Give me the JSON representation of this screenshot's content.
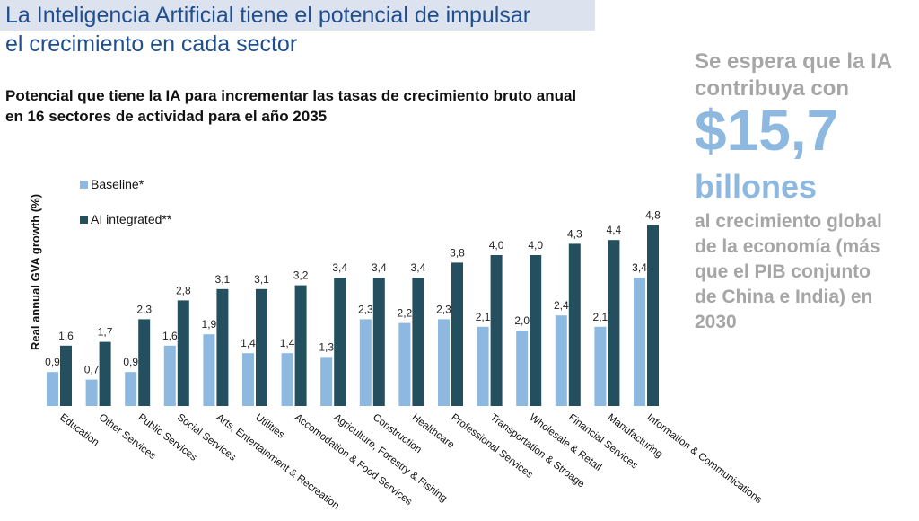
{
  "header": {
    "title_line1": "La Inteligencia Artificial tiene el potencial de impulsar",
    "title_line2": "el crecimiento en cada sector"
  },
  "colors": {
    "baseline": "#8db8e0",
    "ai_integrated": "#244f5e",
    "title": "#1f4f8f",
    "side_text": "#a6a6a6"
  },
  "side_panel": {
    "lead_line1": "Se espera que la IA",
    "lead_line2": "contribuya con",
    "figure": "$15,7",
    "unit": "billones",
    "body_lines": [
      "al crecimiento global",
      "de la economía (más",
      "que el PIB conjunto",
      "de China e India) en",
      "2030"
    ]
  },
  "chart_data": {
    "type": "bar",
    "title": "Potencial que tiene la IA para incrementar las tasas de crecimiento bruto anual en 16 sectores de actividad para el año 2035",
    "title_lines": [
      "Potencial que tiene la IA para incrementar las tasas de crecimiento bruto anual",
      "en 16 sectores de actividad para el año 2035"
    ],
    "ylabel": "Real annual GVA growth (%)",
    "xlabel": "",
    "ylim": [
      0,
      4.8
    ],
    "grid": false,
    "legend": "top-left",
    "categories": [
      "Education",
      "Other Services",
      "Public Services",
      "Social Services",
      "Arts, Entertainment & Recreation",
      "Utilities",
      "Accomodation & Food Services",
      "Agriculture, Forestry & Fishing",
      "Construction",
      "Healthcare",
      "Professional Services",
      "Transportation & Stroage",
      "Wholesale & Retail",
      "Financial Services",
      "Manufacturing",
      "Information & Communications"
    ],
    "series": [
      {
        "name": "Baseline*",
        "values": [
          0.9,
          0.7,
          0.9,
          1.6,
          1.9,
          1.4,
          1.4,
          1.3,
          2.3,
          2.2,
          2.3,
          2.1,
          2.0,
          2.4,
          2.1,
          3.4
        ],
        "labels": [
          "0,9",
          "0,7",
          "0,9",
          "1,6",
          "1,9",
          "1,4",
          "1,4",
          "1,3",
          "2,3",
          "2,2",
          "2,3",
          "2,1",
          "2,0",
          "2,4",
          "2,1",
          "3,4"
        ]
      },
      {
        "name": "AI integrated**",
        "values": [
          1.6,
          1.7,
          2.3,
          2.8,
          3.1,
          3.1,
          3.2,
          3.4,
          3.4,
          3.4,
          3.8,
          4.0,
          4.0,
          4.3,
          4.4,
          4.8
        ],
        "labels": [
          "1,6",
          "1,7",
          "2,3",
          "2,8",
          "3,1",
          "3,1",
          "3,2",
          "3,4",
          "3,4",
          "3,4",
          "3,8",
          "4,0",
          "4,0",
          "4,3",
          "4,4",
          "4,8"
        ]
      }
    ]
  }
}
